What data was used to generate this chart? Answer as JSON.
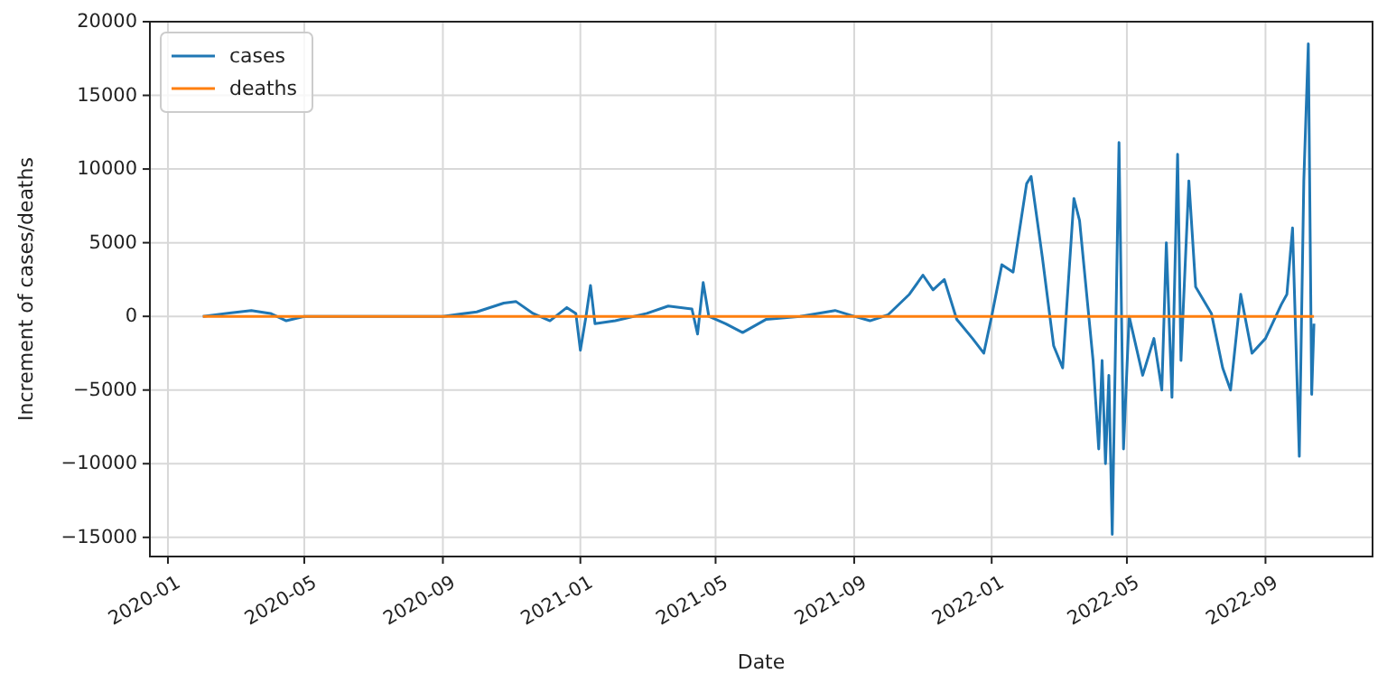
{
  "chart_data": {
    "type": "line",
    "xlabel": "Date",
    "ylabel": "Increment of cases/deaths",
    "xlim": [
      "2019-12-16",
      "2022-12-05"
    ],
    "xticks": [
      {
        "value": "2020-01-01",
        "label": "2020-01"
      },
      {
        "value": "2020-05-01",
        "label": "2020-05"
      },
      {
        "value": "2020-09-01",
        "label": "2020-09"
      },
      {
        "value": "2021-01-01",
        "label": "2021-01"
      },
      {
        "value": "2021-05-01",
        "label": "2021-05"
      },
      {
        "value": "2021-09-01",
        "label": "2021-09"
      },
      {
        "value": "2022-01-01",
        "label": "2022-01"
      },
      {
        "value": "2022-05-01",
        "label": "2022-05"
      },
      {
        "value": "2022-09-01",
        "label": "2022-09"
      }
    ],
    "ylim": [
      -16300,
      20000
    ],
    "yticks": [
      -15000,
      -10000,
      -5000,
      0,
      5000,
      10000,
      15000,
      20000
    ],
    "grid": true,
    "legend": "top left",
    "series": [
      {
        "name": "cases",
        "color": "#1f77b4",
        "x": [
          "2020-02-01",
          "2020-03-15",
          "2020-04-01",
          "2020-04-15",
          "2020-05-01",
          "2020-07-01",
          "2020-09-01",
          "2020-10-01",
          "2020-10-25",
          "2020-11-05",
          "2020-11-20",
          "2020-12-05",
          "2020-12-20",
          "2020-12-28",
          "2021-01-01",
          "2021-01-06",
          "2021-01-10",
          "2021-01-14",
          "2021-02-01",
          "2021-03-01",
          "2021-03-20",
          "2021-04-10",
          "2021-04-15",
          "2021-04-20",
          "2021-04-25",
          "2021-05-10",
          "2021-05-25",
          "2021-06-15",
          "2021-07-15",
          "2021-08-15",
          "2021-09-01",
          "2021-09-15",
          "2021-10-01",
          "2021-10-20",
          "2021-11-01",
          "2021-11-10",
          "2021-11-20",
          "2021-12-01",
          "2021-12-15",
          "2021-12-25",
          "2022-01-01",
          "2022-01-10",
          "2022-01-20",
          "2022-02-01",
          "2022-02-05",
          "2022-02-15",
          "2022-02-25",
          "2022-03-05",
          "2022-03-15",
          "2022-03-20",
          "2022-04-01",
          "2022-04-06",
          "2022-04-09",
          "2022-04-12",
          "2022-04-15",
          "2022-04-18",
          "2022-04-24",
          "2022-04-28",
          "2022-05-03",
          "2022-05-15",
          "2022-05-25",
          "2022-06-01",
          "2022-06-05",
          "2022-06-10",
          "2022-06-15",
          "2022-06-18",
          "2022-06-25",
          "2022-07-01",
          "2022-07-15",
          "2022-07-25",
          "2022-08-01",
          "2022-08-10",
          "2022-08-20",
          "2022-09-01",
          "2022-09-15",
          "2022-09-20",
          "2022-09-25",
          "2022-10-01",
          "2022-10-05",
          "2022-10-09",
          "2022-10-12",
          "2022-10-14"
        ],
        "values": [
          0,
          400,
          200,
          -300,
          0,
          0,
          0,
          300,
          900,
          1000,
          200,
          -300,
          600,
          200,
          -2300,
          0,
          2100,
          -500,
          -300,
          200,
          700,
          500,
          -1200,
          2300,
          0,
          -500,
          -1100,
          -200,
          0,
          400,
          0,
          -300,
          100,
          1500,
          2800,
          1800,
          2500,
          -200,
          -1500,
          -2500,
          0,
          3500,
          3000,
          9000,
          9500,
          4000,
          -2000,
          -3500,
          8000,
          6500,
          -3000,
          -9000,
          -3000,
          -10000,
          -4000,
          -14800,
          11800,
          -9000,
          0,
          -4000,
          -1500,
          -5000,
          5000,
          -5500,
          11000,
          -3000,
          9200,
          2000,
          200,
          -3500,
          -5000,
          1500,
          -2500,
          -1500,
          800,
          1500,
          6000,
          -9500,
          9200,
          18500,
          -5300,
          -500
        ]
      },
      {
        "name": "deaths",
        "color": "#ff7f0e",
        "x": [
          "2020-02-01",
          "2021-01-01",
          "2022-01-01",
          "2022-10-14"
        ],
        "values": [
          0,
          0,
          0,
          0
        ]
      }
    ]
  }
}
